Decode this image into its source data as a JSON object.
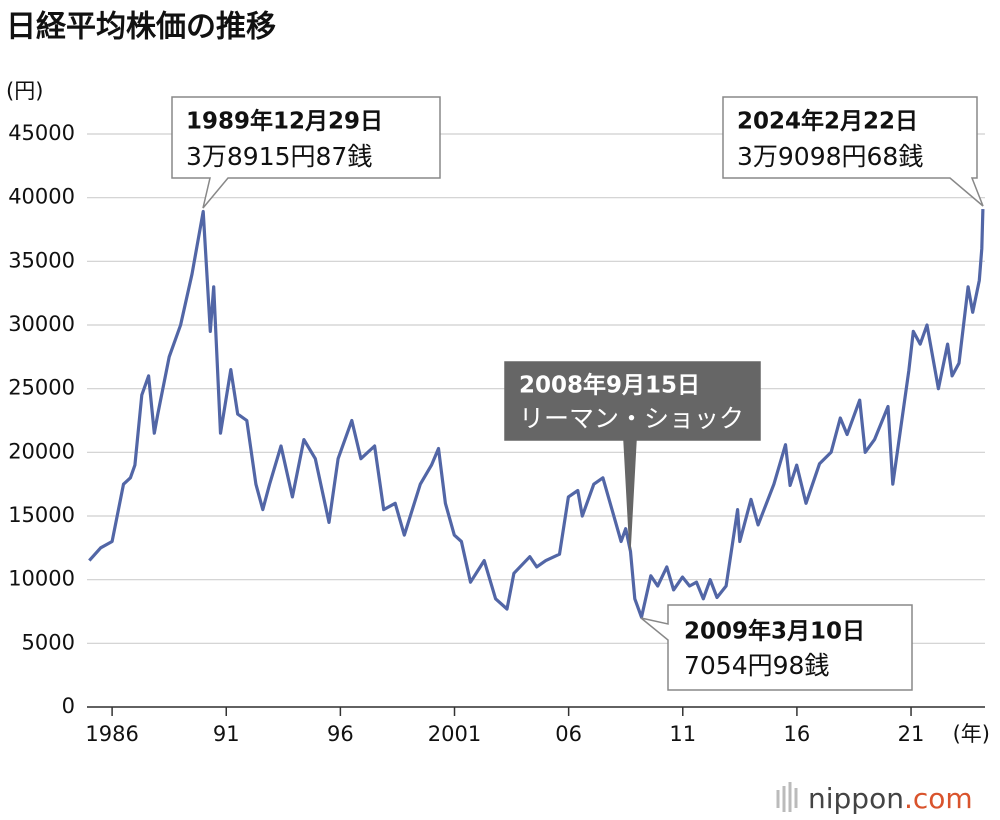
{
  "chart_data": {
    "type": "line",
    "title": "日経平均株価の推移",
    "y_label": "(円)",
    "x_label": "(年)",
    "xlim": [
      1984.9,
      2024.24
    ],
    "xticks": [
      {
        "value": 1986,
        "label": "1986"
      },
      {
        "value": 1991,
        "label": "91"
      },
      {
        "value": 1996,
        "label": "96"
      },
      {
        "value": 2001,
        "label": "2001"
      },
      {
        "value": 2006,
        "label": "06"
      },
      {
        "value": 2011,
        "label": "11"
      },
      {
        "value": 2016,
        "label": "16"
      },
      {
        "value": 2021,
        "label": "21"
      }
    ],
    "ylim": [
      0,
      45000
    ],
    "yticks": [
      0,
      5000,
      10000,
      15000,
      20000,
      25000,
      30000,
      35000,
      40000,
      45000
    ],
    "grid": true,
    "series": [
      {
        "name": "日経平均株価",
        "color": "#5266a6",
        "x": [
          1985.0,
          1985.5,
          1986.0,
          1986.5,
          1986.8,
          1987.0,
          1987.3,
          1987.6,
          1987.85,
          1988.0,
          1988.5,
          1989.0,
          1989.5,
          1989.99,
          1990.3,
          1990.45,
          1990.75,
          1991.2,
          1991.5,
          1991.9,
          1992.3,
          1992.6,
          1992.9,
          1993.4,
          1993.9,
          1994.4,
          1994.9,
          1995.5,
          1995.9,
          1996.5,
          1996.9,
          1997.5,
          1997.9,
          1998.4,
          1998.8,
          1999.5,
          1999.99,
          2000.3,
          2000.6,
          2000.99,
          2001.3,
          2001.7,
          2002.3,
          2002.8,
          2003.3,
          2003.6,
          2004.3,
          2004.6,
          2005.0,
          2005.6,
          2005.99,
          2006.4,
          2006.6,
          2007.1,
          2007.5,
          2007.9,
          2008.3,
          2008.5,
          2008.71,
          2008.9,
          2009.19,
          2009.6,
          2009.9,
          2010.3,
          2010.6,
          2010.99,
          2011.3,
          2011.6,
          2011.9,
          2012.2,
          2012.5,
          2012.9,
          2013.4,
          2013.5,
          2013.99,
          2014.3,
          2014.99,
          2015.5,
          2015.7,
          2015.99,
          2016.4,
          2016.99,
          2017.5,
          2017.9,
          2018.2,
          2018.75,
          2018.99,
          2019.4,
          2019.99,
          2020.2,
          2020.9,
          2021.1,
          2021.4,
          2021.7,
          2022.2,
          2022.6,
          2022.8,
          2023.1,
          2023.5,
          2023.7,
          2023.99,
          2024.1,
          2024.15
        ],
        "values": [
          11500,
          12500,
          13000,
          17500,
          18000,
          19000,
          24500,
          26000,
          21500,
          23000,
          27500,
          30000,
          34000,
          38915.87,
          29500,
          33000,
          21500,
          26500,
          23000,
          22500,
          17500,
          15500,
          17500,
          20500,
          16500,
          21000,
          19500,
          14500,
          19500,
          22500,
          19500,
          20500,
          15500,
          16000,
          13500,
          17500,
          19000,
          20300,
          16000,
          13500,
          13000,
          9800,
          11500,
          8500,
          7700,
          10500,
          11800,
          11000,
          11500,
          12000,
          16500,
          17000,
          15000,
          17500,
          18000,
          15500,
          13000,
          14000,
          12214,
          8500,
          7054.98,
          10300,
          9500,
          11000,
          9200,
          10200,
          9500,
          9800,
          8500,
          10000,
          8600,
          9500,
          15500,
          13000,
          16300,
          14300,
          17500,
          20600,
          17400,
          19000,
          16000,
          19100,
          20000,
          22700,
          21400,
          24100,
          20000,
          21000,
          23600,
          17500,
          26400,
          29500,
          28500,
          30000,
          25000,
          28500,
          26000,
          27000,
          33000,
          31000,
          33500,
          36000,
          39098.68
        ]
      }
    ],
    "annotations": [
      {
        "label": "1989年12月29日",
        "text": "3万8915円87銭"
      },
      {
        "label": "2024年2月22日",
        "text": "3万9098円68銭"
      },
      {
        "label": "2008年9月15日",
        "text": "リーマン・ショック"
      },
      {
        "label": "2009年3月10日",
        "text": "7054円98銭"
      }
    ]
  },
  "source": {
    "name": "nippon",
    "suffix": ".com"
  }
}
